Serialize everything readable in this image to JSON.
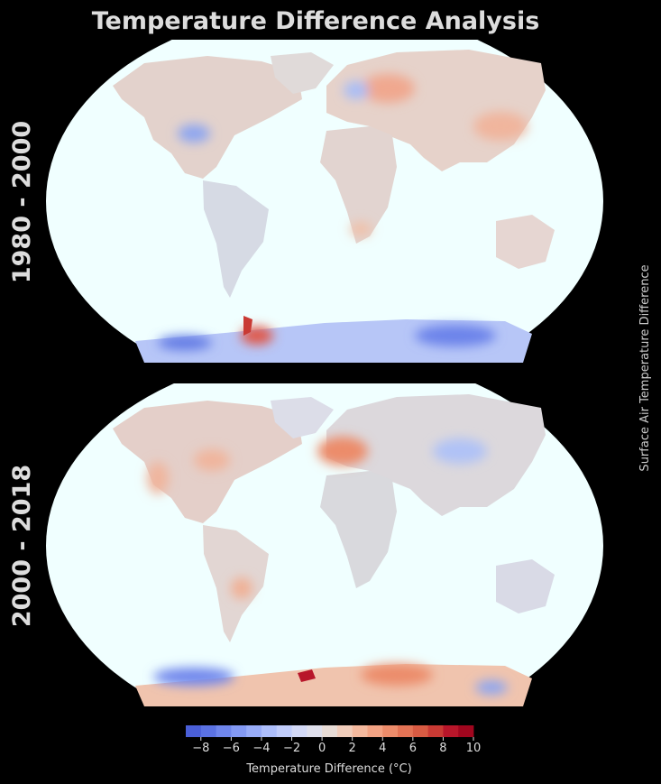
{
  "title": "Temperature Difference Analysis",
  "panels": [
    {
      "label": "1980 - 2000"
    },
    {
      "label": "2000 - 2018"
    }
  ],
  "side_label": "Surface Air Temperature Difference",
  "colorbar": {
    "label": "Temperature Difference (°C)",
    "ticks": [
      "−8",
      "−6",
      "−4",
      "−2",
      "0",
      "2",
      "4",
      "6",
      "8",
      "10"
    ],
    "tick_values": [
      -8,
      -6,
      -4,
      -2,
      0,
      2,
      4,
      6,
      8,
      10
    ],
    "min": -9,
    "max": 10,
    "colors": [
      "#4a5fd8",
      "#5b72e3",
      "#6f86ec",
      "#8399f3",
      "#98acf8",
      "#adbefb",
      "#c1cdfb",
      "#d3d9f6",
      "#dfe0ec",
      "#e8dcd6",
      "#f1cdbb",
      "#f4b99e",
      "#f2a384",
      "#ec8c6b",
      "#e37355",
      "#d85b43",
      "#c93a34",
      "#b8162a",
      "#a0061e"
    ]
  },
  "colors": {
    "background": "#000000",
    "ocean": "#f0ffff",
    "land_neutral": "#dcdcdc",
    "warm": "#f1a98c",
    "cool": "#a9bdf6",
    "text": "#dddddd"
  }
}
